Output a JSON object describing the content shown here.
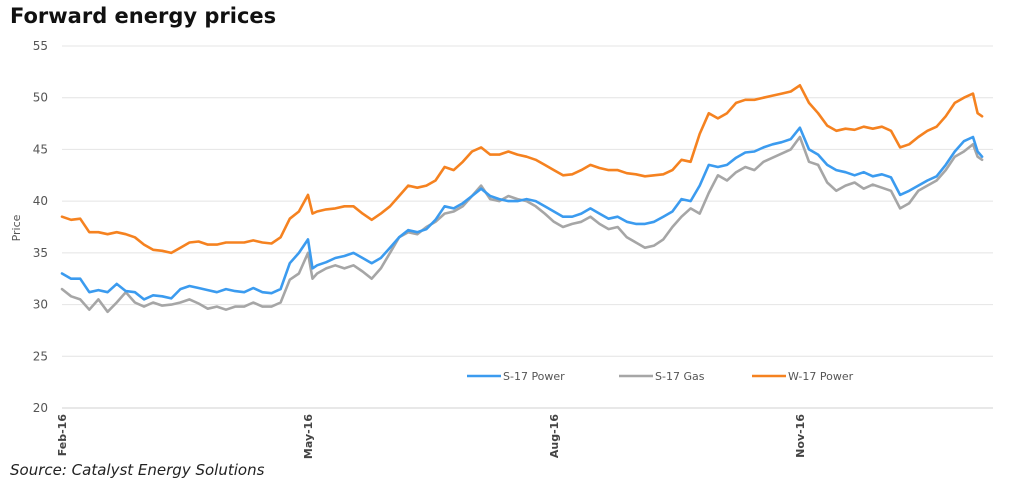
{
  "chart_data": {
    "type": "line",
    "title": "Forward energy prices",
    "source": "Source: Catalyst Energy Solutions",
    "ylabel": "Price",
    "xlabel": "",
    "ylim": [
      20,
      55
    ],
    "yticks": [
      "20",
      "25",
      "30",
      "35",
      "40",
      "45",
      "50",
      "55"
    ],
    "x_range": [
      0,
      100
    ],
    "xticks": [
      {
        "label": "Feb-16",
        "x": 0
      },
      {
        "label": "May-16",
        "x": 27
      },
      {
        "label": "Aug-16",
        "x": 54
      },
      {
        "label": "Nov-16",
        "x": 81
      }
    ],
    "grid": true,
    "legend_position": "bottom-right",
    "series": [
      {
        "name": "S-17 Power",
        "color": "#3b9bef",
        "points": [
          [
            0,
            33
          ],
          [
            1,
            32.5
          ],
          [
            2,
            32.5
          ],
          [
            3,
            31.2
          ],
          [
            4,
            31.4
          ],
          [
            5,
            31.2
          ],
          [
            6,
            32
          ],
          [
            7,
            31.3
          ],
          [
            8,
            31.2
          ],
          [
            9,
            30.5
          ],
          [
            10,
            30.9
          ],
          [
            11,
            30.8
          ],
          [
            12,
            30.6
          ],
          [
            13,
            31.5
          ],
          [
            14,
            31.8
          ],
          [
            15,
            31.6
          ],
          [
            16,
            31.4
          ],
          [
            17,
            31.2
          ],
          [
            18,
            31.5
          ],
          [
            19,
            31.3
          ],
          [
            20,
            31.2
          ],
          [
            21,
            31.6
          ],
          [
            22,
            31.2
          ],
          [
            23,
            31.1
          ],
          [
            24,
            31.5
          ],
          [
            25,
            34
          ],
          [
            26,
            35
          ],
          [
            27,
            36.3
          ],
          [
            27.5,
            33.5
          ],
          [
            28,
            33.8
          ],
          [
            29,
            34.1
          ],
          [
            30,
            34.5
          ],
          [
            31,
            34.7
          ],
          [
            32,
            35
          ],
          [
            33,
            34.5
          ],
          [
            34,
            34
          ],
          [
            35,
            34.5
          ],
          [
            36,
            35.5
          ],
          [
            37,
            36.5
          ],
          [
            38,
            37.2
          ],
          [
            39,
            37
          ],
          [
            40,
            37.3
          ],
          [
            41,
            38.2
          ],
          [
            42,
            39.5
          ],
          [
            43,
            39.3
          ],
          [
            44,
            39.8
          ],
          [
            45,
            40.5
          ],
          [
            46,
            41.2
          ],
          [
            47,
            40.5
          ],
          [
            48,
            40.2
          ],
          [
            49,
            40
          ],
          [
            50,
            40
          ],
          [
            51,
            40.2
          ],
          [
            52,
            40
          ],
          [
            53,
            39.5
          ],
          [
            54,
            39
          ],
          [
            55,
            38.5
          ],
          [
            56,
            38.5
          ],
          [
            57,
            38.8
          ],
          [
            58,
            39.3
          ],
          [
            59,
            38.8
          ],
          [
            60,
            38.3
          ],
          [
            61,
            38.5
          ],
          [
            62,
            38
          ],
          [
            63,
            37.8
          ],
          [
            64,
            37.8
          ],
          [
            65,
            38
          ],
          [
            66,
            38.5
          ],
          [
            67,
            39
          ],
          [
            68,
            40.2
          ],
          [
            69,
            40
          ],
          [
            70,
            41.5
          ],
          [
            71,
            43.5
          ],
          [
            72,
            43.3
          ],
          [
            73,
            43.5
          ],
          [
            74,
            44.2
          ],
          [
            75,
            44.7
          ],
          [
            76,
            44.8
          ],
          [
            77,
            45.2
          ],
          [
            78,
            45.5
          ],
          [
            79,
            45.7
          ],
          [
            80,
            46
          ],
          [
            81,
            47.1
          ],
          [
            82,
            45
          ],
          [
            83,
            44.5
          ],
          [
            84,
            43.5
          ],
          [
            85,
            43
          ],
          [
            86,
            42.8
          ],
          [
            87,
            42.5
          ],
          [
            88,
            42.8
          ],
          [
            89,
            42.4
          ],
          [
            90,
            42.6
          ],
          [
            91,
            42.3
          ],
          [
            92,
            40.6
          ],
          [
            93,
            41
          ],
          [
            94,
            41.5
          ],
          [
            95,
            42
          ],
          [
            96,
            42.4
          ],
          [
            97,
            43.5
          ],
          [
            98,
            44.8
          ],
          [
            99,
            45.8
          ],
          [
            100,
            46.2
          ],
          [
            100.5,
            44.8
          ],
          [
            101,
            44.3
          ]
        ]
      },
      {
        "name": "S-17 Gas",
        "color": "#a6a6a6",
        "points": [
          [
            0,
            31.5
          ],
          [
            1,
            30.8
          ],
          [
            2,
            30.5
          ],
          [
            3,
            29.5
          ],
          [
            4,
            30.5
          ],
          [
            5,
            29.3
          ],
          [
            6,
            30.2
          ],
          [
            7,
            31.2
          ],
          [
            8,
            30.2
          ],
          [
            9,
            29.8
          ],
          [
            10,
            30.2
          ],
          [
            11,
            29.9
          ],
          [
            12,
            30
          ],
          [
            13,
            30.2
          ],
          [
            14,
            30.5
          ],
          [
            15,
            30.1
          ],
          [
            16,
            29.6
          ],
          [
            17,
            29.8
          ],
          [
            18,
            29.5
          ],
          [
            19,
            29.8
          ],
          [
            20,
            29.8
          ],
          [
            21,
            30.2
          ],
          [
            22,
            29.8
          ],
          [
            23,
            29.8
          ],
          [
            24,
            30.2
          ],
          [
            25,
            32.4
          ],
          [
            26,
            33
          ],
          [
            27,
            35
          ],
          [
            27.5,
            32.5
          ],
          [
            28,
            33
          ],
          [
            29,
            33.5
          ],
          [
            30,
            33.8
          ],
          [
            31,
            33.5
          ],
          [
            32,
            33.8
          ],
          [
            33,
            33.2
          ],
          [
            34,
            32.5
          ],
          [
            35,
            33.5
          ],
          [
            36,
            35
          ],
          [
            37,
            36.5
          ],
          [
            38,
            37
          ],
          [
            39,
            36.8
          ],
          [
            40,
            37.5
          ],
          [
            41,
            38
          ],
          [
            42,
            38.8
          ],
          [
            43,
            39
          ],
          [
            44,
            39.5
          ],
          [
            45,
            40.5
          ],
          [
            46,
            41.5
          ],
          [
            47,
            40.2
          ],
          [
            48,
            40
          ],
          [
            49,
            40.5
          ],
          [
            50,
            40.2
          ],
          [
            51,
            40
          ],
          [
            52,
            39.5
          ],
          [
            53,
            38.8
          ],
          [
            54,
            38
          ],
          [
            55,
            37.5
          ],
          [
            56,
            37.8
          ],
          [
            57,
            38
          ],
          [
            58,
            38.5
          ],
          [
            59,
            37.8
          ],
          [
            60,
            37.3
          ],
          [
            61,
            37.5
          ],
          [
            62,
            36.5
          ],
          [
            63,
            36
          ],
          [
            64,
            35.5
          ],
          [
            65,
            35.7
          ],
          [
            66,
            36.3
          ],
          [
            67,
            37.5
          ],
          [
            68,
            38.5
          ],
          [
            69,
            39.3
          ],
          [
            70,
            38.8
          ],
          [
            71,
            40.8
          ],
          [
            72,
            42.5
          ],
          [
            73,
            42
          ],
          [
            74,
            42.8
          ],
          [
            75,
            43.3
          ],
          [
            76,
            43
          ],
          [
            77,
            43.8
          ],
          [
            78,
            44.2
          ],
          [
            79,
            44.6
          ],
          [
            80,
            45
          ],
          [
            81,
            46.2
          ],
          [
            82,
            43.8
          ],
          [
            83,
            43.5
          ],
          [
            84,
            41.8
          ],
          [
            85,
            41
          ],
          [
            86,
            41.5
          ],
          [
            87,
            41.8
          ],
          [
            88,
            41.2
          ],
          [
            89,
            41.6
          ],
          [
            90,
            41.3
          ],
          [
            91,
            41
          ],
          [
            92,
            39.3
          ],
          [
            93,
            39.8
          ],
          [
            94,
            41
          ],
          [
            95,
            41.5
          ],
          [
            96,
            42
          ],
          [
            97,
            43
          ],
          [
            98,
            44.3
          ],
          [
            99,
            44.8
          ],
          [
            100,
            45.5
          ],
          [
            100.5,
            44.3
          ],
          [
            101,
            44
          ]
        ]
      },
      {
        "name": "W-17 Power",
        "color": "#f58220",
        "points": [
          [
            0,
            38.5
          ],
          [
            1,
            38.2
          ],
          [
            2,
            38.3
          ],
          [
            3,
            37
          ],
          [
            4,
            37
          ],
          [
            5,
            36.8
          ],
          [
            6,
            37
          ],
          [
            7,
            36.8
          ],
          [
            8,
            36.5
          ],
          [
            9,
            35.8
          ],
          [
            10,
            35.3
          ],
          [
            11,
            35.2
          ],
          [
            12,
            35
          ],
          [
            13,
            35.5
          ],
          [
            14,
            36
          ],
          [
            15,
            36.1
          ],
          [
            16,
            35.8
          ],
          [
            17,
            35.8
          ],
          [
            18,
            36
          ],
          [
            19,
            36
          ],
          [
            20,
            36
          ],
          [
            21,
            36.2
          ],
          [
            22,
            36
          ],
          [
            23,
            35.9
          ],
          [
            24,
            36.5
          ],
          [
            25,
            38.3
          ],
          [
            26,
            39
          ],
          [
            27,
            40.6
          ],
          [
            27.5,
            38.8
          ],
          [
            28,
            39
          ],
          [
            29,
            39.2
          ],
          [
            30,
            39.3
          ],
          [
            31,
            39.5
          ],
          [
            32,
            39.5
          ],
          [
            33,
            38.8
          ],
          [
            34,
            38.2
          ],
          [
            35,
            38.8
          ],
          [
            36,
            39.5
          ],
          [
            37,
            40.5
          ],
          [
            38,
            41.5
          ],
          [
            39,
            41.3
          ],
          [
            40,
            41.5
          ],
          [
            41,
            42
          ],
          [
            42,
            43.3
          ],
          [
            43,
            43
          ],
          [
            44,
            43.8
          ],
          [
            45,
            44.8
          ],
          [
            46,
            45.2
          ],
          [
            47,
            44.5
          ],
          [
            48,
            44.5
          ],
          [
            49,
            44.8
          ],
          [
            50,
            44.5
          ],
          [
            51,
            44.3
          ],
          [
            52,
            44
          ],
          [
            53,
            43.5
          ],
          [
            54,
            43
          ],
          [
            55,
            42.5
          ],
          [
            56,
            42.6
          ],
          [
            57,
            43
          ],
          [
            58,
            43.5
          ],
          [
            59,
            43.2
          ],
          [
            60,
            43
          ],
          [
            61,
            43
          ],
          [
            62,
            42.7
          ],
          [
            63,
            42.6
          ],
          [
            64,
            42.4
          ],
          [
            65,
            42.5
          ],
          [
            66,
            42.6
          ],
          [
            67,
            43
          ],
          [
            68,
            44
          ],
          [
            69,
            43.8
          ],
          [
            70,
            46.5
          ],
          [
            71,
            48.5
          ],
          [
            72,
            48
          ],
          [
            73,
            48.5
          ],
          [
            74,
            49.5
          ],
          [
            75,
            49.8
          ],
          [
            76,
            49.8
          ],
          [
            77,
            50
          ],
          [
            78,
            50.2
          ],
          [
            79,
            50.4
          ],
          [
            80,
            50.6
          ],
          [
            81,
            51.2
          ],
          [
            82,
            49.5
          ],
          [
            83,
            48.5
          ],
          [
            84,
            47.3
          ],
          [
            85,
            46.8
          ],
          [
            86,
            47
          ],
          [
            87,
            46.9
          ],
          [
            88,
            47.2
          ],
          [
            89,
            47
          ],
          [
            90,
            47.2
          ],
          [
            91,
            46.8
          ],
          [
            92,
            45.2
          ],
          [
            93,
            45.5
          ],
          [
            94,
            46.2
          ],
          [
            95,
            46.8
          ],
          [
            96,
            47.2
          ],
          [
            97,
            48.2
          ],
          [
            98,
            49.5
          ],
          [
            99,
            50
          ],
          [
            100,
            50.4
          ],
          [
            100.5,
            48.5
          ],
          [
            101,
            48.2
          ]
        ]
      }
    ]
  }
}
